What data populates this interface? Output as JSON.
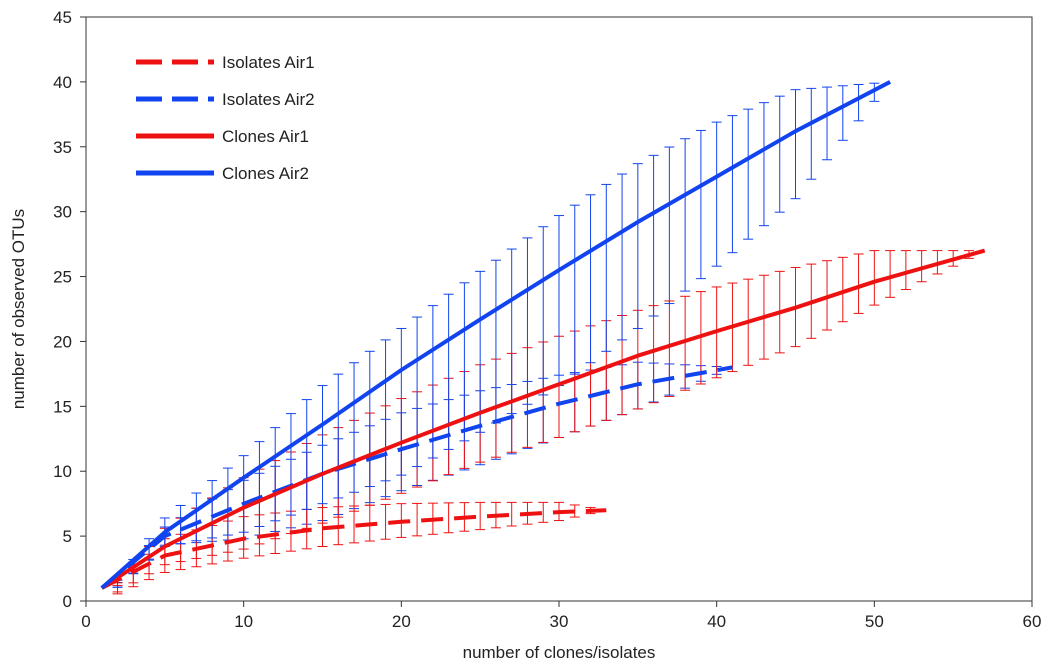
{
  "chart_data": {
    "type": "line",
    "title": "",
    "xlabel": "number of clones/isolates",
    "ylabel": "number of observed OTUs",
    "xlim": [
      0,
      60
    ],
    "ylim": [
      0,
      45
    ],
    "x_ticks": [
      0,
      10,
      20,
      30,
      40,
      50,
      60
    ],
    "y_ticks": [
      0,
      5,
      10,
      15,
      20,
      25,
      30,
      35,
      40,
      45
    ],
    "grid": false,
    "legend_position": "top-left",
    "error_bars": true,
    "series": [
      {
        "name": "Isolates Air1",
        "color": "#ee1111",
        "line_style": "dashed",
        "x": [
          1,
          5,
          10,
          15,
          20,
          25,
          30,
          33
        ],
        "y": [
          1,
          3.5,
          4.8,
          5.6,
          6.1,
          6.5,
          6.85,
          7
        ],
        "err_low": [
          0,
          2.2,
          3.3,
          4.2,
          4.9,
          5.5,
          6.2,
          7
        ],
        "err_high": [
          0,
          4.8,
          6.5,
          7.2,
          7.5,
          7.6,
          7.6,
          7
        ]
      },
      {
        "name": "Isolates Air2",
        "color": "#1144ee",
        "line_style": "dashed",
        "x": [
          1,
          5,
          10,
          15,
          20,
          25,
          30,
          35,
          41
        ],
        "y": [
          1,
          5,
          7.5,
          9.8,
          11.7,
          13.5,
          15.2,
          16.7,
          18
        ],
        "err_low": [
          0,
          4.3,
          4.8,
          6.2,
          8.5,
          10.5,
          12.6,
          14.8,
          18
        ],
        "err_high": [
          0,
          5.7,
          9.3,
          12.0,
          14.5,
          16.2,
          17.4,
          18.4,
          18
        ]
      },
      {
        "name": "Clones Air1",
        "color": "#ee1111",
        "line_style": "solid",
        "x": [
          1,
          5,
          10,
          15,
          20,
          25,
          30,
          35,
          40,
          45,
          50,
          57
        ],
        "y": [
          1,
          4.2,
          7.2,
          9.8,
          12.2,
          14.5,
          16.7,
          18.9,
          20.8,
          22.6,
          24.6,
          27
        ],
        "err_low": [
          0,
          2.8,
          4.0,
          6.0,
          8.3,
          10.7,
          12.6,
          14.8,
          17.2,
          19.6,
          22.8,
          27
        ],
        "err_high": [
          0,
          5.6,
          9.5,
          12.8,
          15.6,
          18.2,
          20.4,
          22.4,
          24.2,
          25.7,
          27.0,
          27
        ]
      },
      {
        "name": "Clones Air2",
        "color": "#1144ee",
        "line_style": "solid",
        "x": [
          1,
          5,
          10,
          15,
          20,
          25,
          30,
          35,
          40,
          45,
          51
        ],
        "y": [
          1,
          5.3,
          9.5,
          13.6,
          17.8,
          21.7,
          25.5,
          29.2,
          32.7,
          36.2,
          40
        ],
        "err_low": [
          0,
          4.2,
          5.3,
          7.5,
          9.7,
          13.0,
          16.6,
          21.0,
          25.8,
          31.0,
          40
        ],
        "err_high": [
          0,
          6.4,
          11.2,
          16.6,
          21.0,
          25.4,
          29.7,
          33.7,
          36.9,
          39.4,
          40
        ]
      }
    ]
  }
}
